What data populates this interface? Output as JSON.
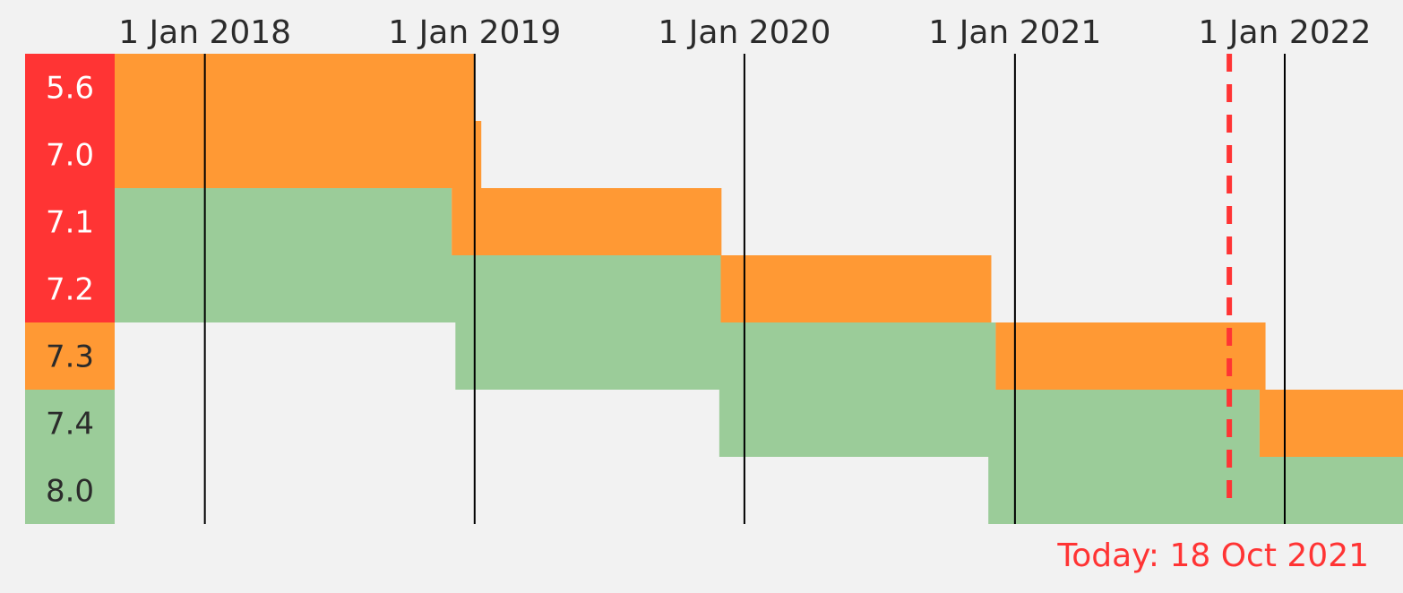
{
  "chart_data": {
    "type": "gantt-timeline",
    "x_ticks": [
      "1 Jan 2018",
      "1 Jan 2019",
      "1 Jan 2020",
      "1 Jan 2021",
      "1 Jan 2022"
    ],
    "x_range": [
      "2017-09-01",
      "2022-06-10"
    ],
    "versions": [
      {
        "label": "5.6",
        "status": "end-of-life"
      },
      {
        "label": "7.0",
        "status": "end-of-life"
      },
      {
        "label": "7.1",
        "status": "end-of-life"
      },
      {
        "label": "7.2",
        "status": "end-of-life"
      },
      {
        "label": "7.3",
        "status": "security-only"
      },
      {
        "label": "7.4",
        "status": "active"
      },
      {
        "label": "8.0",
        "status": "active"
      }
    ],
    "spans": [
      {
        "version": "5.6",
        "phase": "security",
        "start": "2017-09-01",
        "end": "2018-12-31"
      },
      {
        "version": "7.0",
        "phase": "security",
        "start": "2017-09-01",
        "end": "2019-01-10"
      },
      {
        "version": "7.1",
        "phase": "active",
        "start": "2017-09-01",
        "end": "2018-12-01"
      },
      {
        "version": "7.1",
        "phase": "security",
        "start": "2018-12-01",
        "end": "2019-12-01"
      },
      {
        "version": "7.2",
        "phase": "active",
        "start": "2017-09-01",
        "end": "2019-11-30"
      },
      {
        "version": "7.2",
        "phase": "security",
        "start": "2019-11-30",
        "end": "2020-11-30"
      },
      {
        "version": "7.3",
        "phase": "active",
        "start": "2018-12-06",
        "end": "2020-12-06"
      },
      {
        "version": "7.3",
        "phase": "security",
        "start": "2020-12-06",
        "end": "2021-12-06"
      },
      {
        "version": "7.4",
        "phase": "active",
        "start": "2019-11-28",
        "end": "2021-11-28"
      },
      {
        "version": "7.4",
        "phase": "security",
        "start": "2021-11-28",
        "end": "2022-06-10"
      },
      {
        "version": "8.0",
        "phase": "active",
        "start": "2020-11-26",
        "end": "2022-06-10"
      }
    ],
    "today": {
      "date": "2021-10-18",
      "label": "Today: 18 Oct 2021"
    },
    "colors": {
      "active": "#9bcc99",
      "security": "#ff9934",
      "end-of-life": "#ff3434",
      "security-only": "#ff9934",
      "today": "#ff3434",
      "label_dark": "#2b2b2b",
      "label_light": "#ffffff",
      "gridline": "#000000"
    }
  }
}
